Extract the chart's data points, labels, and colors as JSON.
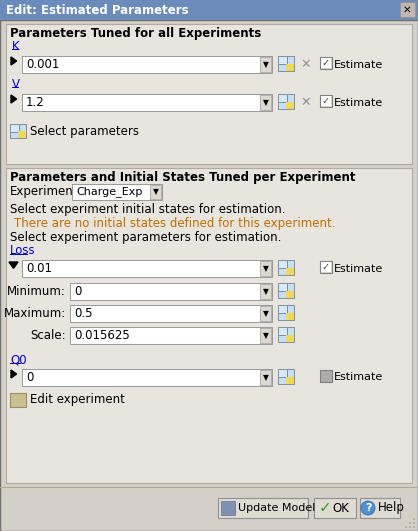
{
  "title": "Edit: Estimated Parameters",
  "bg_color": "#d4d0c8",
  "title_bar_color": "#6b8cba",
  "title_bar_text_color": "#ffffff",
  "section1_title": "Parameters Tuned for all Experiments",
  "section2_title": "Parameters and Initial States Tuned per Experiment",
  "param_k_label": "K",
  "param_k_value": "0.001",
  "param_v_label": "V",
  "param_v_value": "1.2",
  "select_parameters_text": "Select parameters",
  "experiment_label": "Experiment:",
  "experiment_value": "Charge_Exp",
  "initial_states_text": "Select experiment initial states for estimation.",
  "no_initial_states_text": "There are no initial states defined for this experiment.",
  "select_params_text": "Select experiment parameters for estimation.",
  "loss_label": "Loss",
  "loss_value": "0.01",
  "min_label": "Minimum:",
  "min_value": "0",
  "max_label": "Maximum:",
  "max_value": "0.5",
  "scale_label": "Scale:",
  "scale_value": "0.015625",
  "q0_label": "Q0",
  "q0_value": "0",
  "edit_experiment_text": "Edit experiment",
  "update_model_text": "Update Model",
  "ok_text": "OK",
  "help_text": "Help",
  "white": "#ffffff",
  "panel_bg": "#e8e4de",
  "outer_bg": "#d4d0c8",
  "border_dark": "#7f7f7f",
  "border_light": "#b0aaa0",
  "link_color": "#0000cc",
  "warn_color": "#c07000",
  "grid_icon_green": "#b8d470",
  "grid_icon_yellow": "#e8d890",
  "chk_gray": "#b0acaa"
}
